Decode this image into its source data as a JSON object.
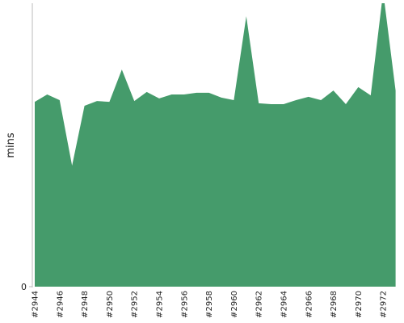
{
  "chart_data": {
    "type": "area",
    "y_label": "mins",
    "categories": [
      "#2944",
      null,
      "#2946",
      null,
      "#2948",
      null,
      "#2950",
      null,
      "#2952",
      null,
      "#2954",
      null,
      "#2956",
      null,
      "#2958",
      null,
      "#2960",
      null,
      "#2962",
      null,
      "#2964",
      null,
      "#2966",
      null,
      "#2968",
      null,
      "#2970",
      null,
      "#2972",
      null
    ],
    "values": [
      65.2,
      67.8,
      65.8,
      42.7,
      63.8,
      65.5,
      65.2,
      76.6,
      65.5,
      68.7,
      66.4,
      67.8,
      67.8,
      68.4,
      68.4,
      66.7,
      65.8,
      95.4,
      64.7,
      64.4,
      64.4,
      65.8,
      67.0,
      65.8,
      69.2,
      64.4,
      70.4,
      67.5,
      104,
      69.2
    ],
    "color": "#459b6b",
    "ylim": [
      0,
      100
    ],
    "yticks": [
      0
    ]
  }
}
